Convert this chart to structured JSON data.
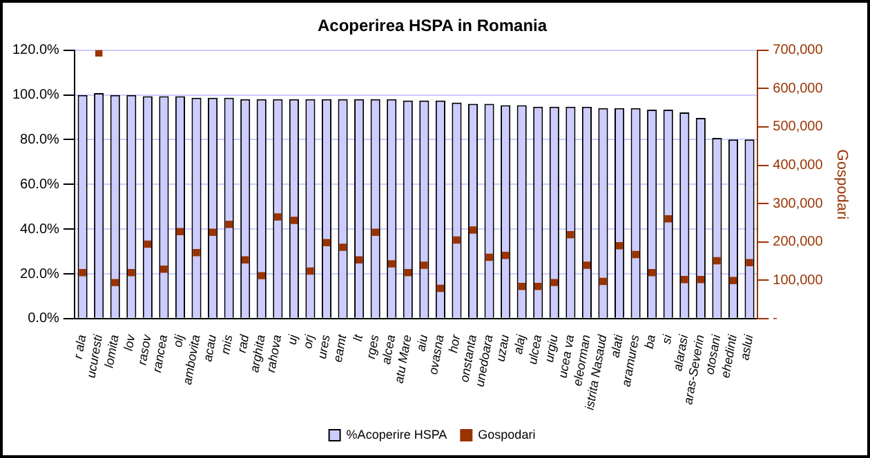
{
  "chart_data": {
    "type": "bar",
    "title": "Acoperirea HSPA in Romania",
    "y2label": "Gospodari",
    "categories": [
      "r ala",
      "ucuresti",
      "lomita",
      "lov",
      "rasov",
      "rancea",
      "olj",
      "ambovita",
      "acau",
      "mis",
      "rad",
      "arghita",
      "rahova",
      "uj",
      "orj",
      "ures",
      "eamt",
      "lt",
      "rges",
      "alcea",
      "atu Mare",
      "aiu",
      "ovasna",
      "hor",
      "onstanta",
      "unedoara",
      "uzau",
      "alaj",
      "ulcea",
      "urgiu",
      "ucea va",
      "eleorman",
      "istrita Nasaud",
      "alati",
      "aramures",
      "ba",
      "si",
      "alarasi",
      "aras-Severin",
      "otosani",
      "ehedinti",
      "aslui"
    ],
    "series": [
      {
        "name": "%Acoperire HSPA",
        "color": "#ccccff",
        "values": [
          100,
          100.8,
          100,
          100,
          99.4,
          99.4,
          99.4,
          98.7,
          98.7,
          98.7,
          98.1,
          98.1,
          98.1,
          98.1,
          98.1,
          98.1,
          98.1,
          98.1,
          98.1,
          98.1,
          97.5,
          97.5,
          97.5,
          96.6,
          96,
          96,
          95.4,
          95.4,
          94.7,
          94.7,
          94.7,
          94.7,
          94.1,
          94.1,
          94.1,
          93.4,
          93.4,
          92.2,
          89.7,
          80.8,
          80.1,
          80.1
        ]
      },
      {
        "name": "Gospodari",
        "type": "scatter",
        "axis": "y2",
        "color": "#993300",
        "values": [
          120000,
          693000,
          94000,
          120000,
          194000,
          129000,
          227000,
          172000,
          225000,
          246000,
          153000,
          112000,
          265000,
          256000,
          124000,
          198000,
          186000,
          153000,
          225000,
          143000,
          120000,
          139000,
          79000,
          205000,
          231000,
          160000,
          165000,
          84000,
          84000,
          94000,
          219000,
          139000,
          97000,
          190000,
          167000,
          120000,
          260000,
          102000,
          102000,
          151000,
          99000,
          146000
        ]
      }
    ],
    "ylim": [
      0,
      120
    ],
    "yticks": [
      {
        "value": 0,
        "label": "0.0%"
      },
      {
        "value": 20,
        "label": "20.0%"
      },
      {
        "value": 40,
        "label": "40.0%"
      },
      {
        "value": 60,
        "label": "60.0%"
      },
      {
        "value": 80,
        "label": "80.0%"
      },
      {
        "value": 100,
        "label": "100.0%"
      },
      {
        "value": 120,
        "label": "120.0%"
      }
    ],
    "y2lim": [
      0,
      700000
    ],
    "y2ticks": [
      {
        "value": 0,
        "label": "-"
      },
      {
        "value": 100000,
        "label": "100,000"
      },
      {
        "value": 200000,
        "label": "200,000"
      },
      {
        "value": 300000,
        "label": "300,000"
      },
      {
        "value": 400000,
        "label": "400,000"
      },
      {
        "value": 500000,
        "label": "500,000"
      },
      {
        "value": 600000,
        "label": "600,000"
      },
      {
        "value": 700000,
        "label": "700,000"
      }
    ],
    "grid": "y",
    "legend": "bottom",
    "marker": "square"
  }
}
